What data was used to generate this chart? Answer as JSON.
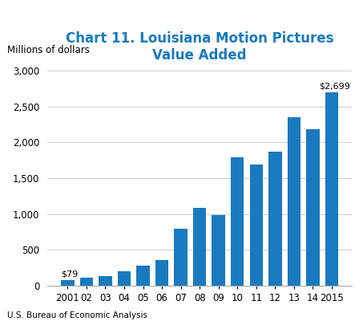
{
  "title": "Chart 11. Louisiana Motion Pictures\nValue Added",
  "ylabel": "Millions of dollars",
  "source": "U.S. Bureau of Economic Analysis",
  "bar_color": "#1a7abf",
  "categories": [
    "2001",
    "02",
    "03",
    "04",
    "05",
    "06",
    "07",
    "08",
    "09",
    "10",
    "11",
    "12",
    "13",
    "14",
    "2015"
  ],
  "values": [
    79,
    110,
    130,
    200,
    280,
    360,
    800,
    1090,
    980,
    1790,
    1690,
    1870,
    2350,
    2180,
    2699
  ],
  "ylim": [
    0,
    3000
  ],
  "yticks": [
    0,
    500,
    1000,
    1500,
    2000,
    2500,
    3000
  ],
  "first_label": "$79",
  "last_label": "$2,699",
  "title_color": "#1a7abf",
  "source_fontsize": 7.5,
  "title_fontsize": 12,
  "axis_label_fontsize": 8.5,
  "tick_fontsize": 8.5
}
